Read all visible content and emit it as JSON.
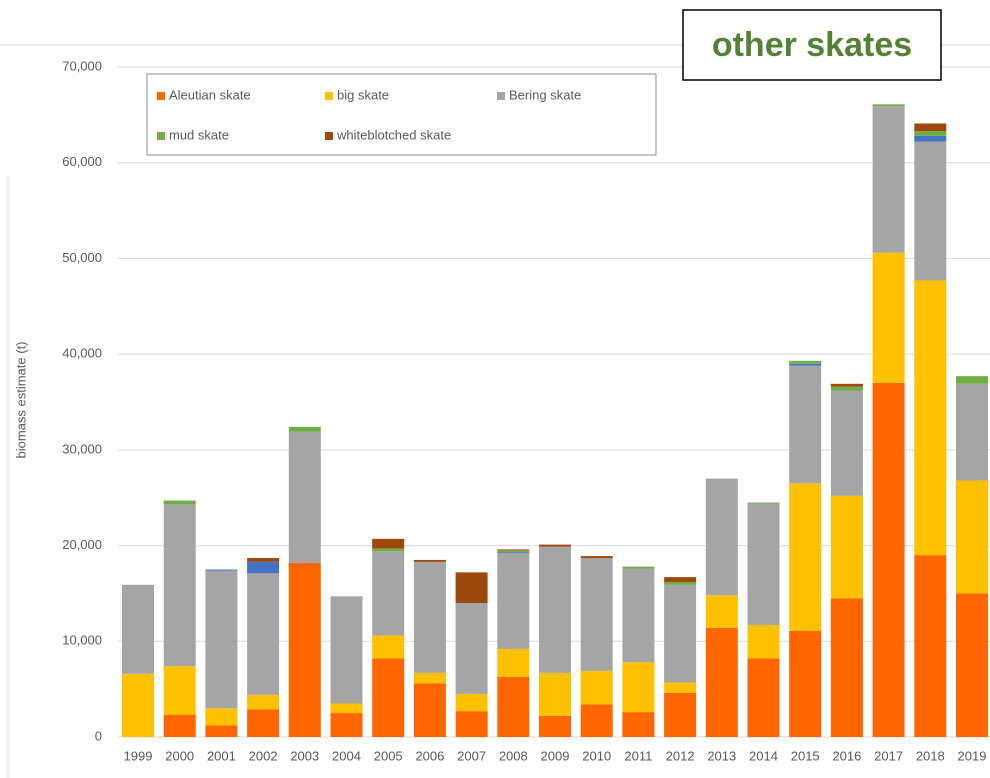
{
  "chart_data": {
    "type": "stacked-bar",
    "title": "other skates",
    "y_label": "biomass estimate (t)",
    "categories": [
      "1999",
      "2000",
      "2001",
      "2002",
      "2003",
      "2004",
      "2005",
      "2006",
      "2007",
      "2008",
      "2009",
      "2010",
      "2011",
      "2012",
      "2013",
      "2014",
      "2015",
      "2016",
      "2017",
      "2018",
      "2019"
    ],
    "series": [
      {
        "name": "Aleutian skate",
        "color": "#ff6600",
        "values": [
          0,
          2300,
          1200,
          2900,
          18200,
          2500,
          8200,
          5600,
          2700,
          6300,
          2200,
          3400,
          2600,
          4600,
          11400,
          8200,
          11100,
          14500,
          37000,
          19000,
          15000
        ]
      },
      {
        "name": "big skate",
        "color": "#ffc000",
        "values": [
          6600,
          5100,
          1800,
          1500,
          0,
          1000,
          2400,
          1100,
          1800,
          2900,
          4500,
          3500,
          5200,
          1100,
          3400,
          3500,
          15400,
          10700,
          13600,
          28700,
          11800
        ]
      },
      {
        "name": "Bering skate",
        "color": "#a5a5a5",
        "values": [
          9300,
          16900,
          14400,
          12700,
          13700,
          11200,
          8800,
          11600,
          9500,
          10000,
          13200,
          11800,
          9800,
          10200,
          12200,
          12700,
          12300,
          11000,
          15300,
          14500,
          10100
        ]
      },
      {
        "name": null,
        "color": "#4472c4",
        "values": [
          0,
          0,
          100,
          1200,
          0,
          0,
          0,
          0,
          0,
          100,
          0,
          0,
          0,
          0,
          0,
          0,
          200,
          0,
          0,
          600,
          0
        ]
      },
      {
        "name": "mud skate",
        "color": "#70ad47",
        "values": [
          0,
          400,
          0,
          0,
          500,
          0,
          300,
          0,
          0,
          200,
          0,
          0,
          200,
          300,
          0,
          100,
          300,
          400,
          200,
          500,
          800
        ]
      },
      {
        "name": "whiteblotched skate",
        "color": "#9e480e",
        "values": [
          0,
          0,
          0,
          400,
          0,
          0,
          1000,
          200,
          3200,
          100,
          200,
          200,
          0,
          500,
          0,
          0,
          0,
          300,
          0,
          800,
          0
        ]
      }
    ],
    "ylim": [
      0,
      70000
    ],
    "yticks": [
      0,
      {
        "value": 10000,
        "label": "10,000"
      },
      {
        "value": 20000,
        "label": "20,000"
      },
      {
        "value": 30000,
        "label": "30,000"
      },
      {
        "value": 40000,
        "label": "40,000"
      },
      {
        "value": 50000,
        "label": "50,000"
      },
      {
        "value": 60000,
        "label": "60,000"
      },
      {
        "value": 70000,
        "label": "70,000"
      }
    ],
    "grid": true,
    "legend": "top-left"
  }
}
